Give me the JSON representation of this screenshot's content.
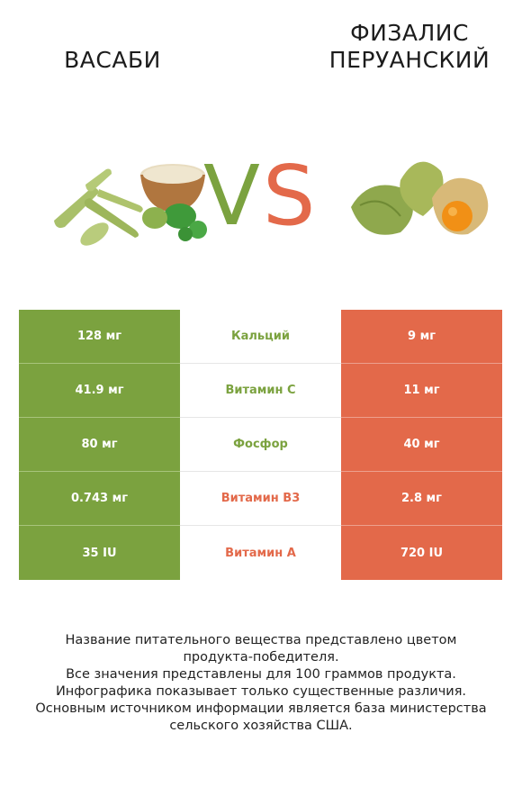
{
  "left_title": "ВАСАБИ",
  "right_title_line1": "ФИЗАЛИС",
  "right_title_line2": "ПЕРУАНСКИЙ",
  "vs_v": "V",
  "vs_s": "S",
  "colors": {
    "left": "#7ba23f",
    "right": "#e3694a"
  },
  "rows": [
    {
      "left": "128 мг",
      "nutrient": "Кальций",
      "right": "9 мг",
      "winner": "left"
    },
    {
      "left": "41.9 мг",
      "nutrient": "Витамин C",
      "right": "11 мг",
      "winner": "left"
    },
    {
      "left": "80 мг",
      "nutrient": "Фосфор",
      "right": "40 мг",
      "winner": "left"
    },
    {
      "left": "0.743 мг",
      "nutrient": "Витамин B3",
      "right": "2.8 мг",
      "winner": "right"
    },
    {
      "left": "35 IU",
      "nutrient": "Витамин A",
      "right": "720 IU",
      "winner": "right"
    }
  ],
  "footer": {
    "line1": "Название питательного вещества представлено цветом",
    "line2": "продукта-победителя.",
    "line3": "Все значения представлены для 100 граммов продукта.",
    "line4": "Инфографика показывает только существенные различия.",
    "line5": "Основным источником информации является база министерства",
    "line6": "сельского хозяйства США."
  }
}
